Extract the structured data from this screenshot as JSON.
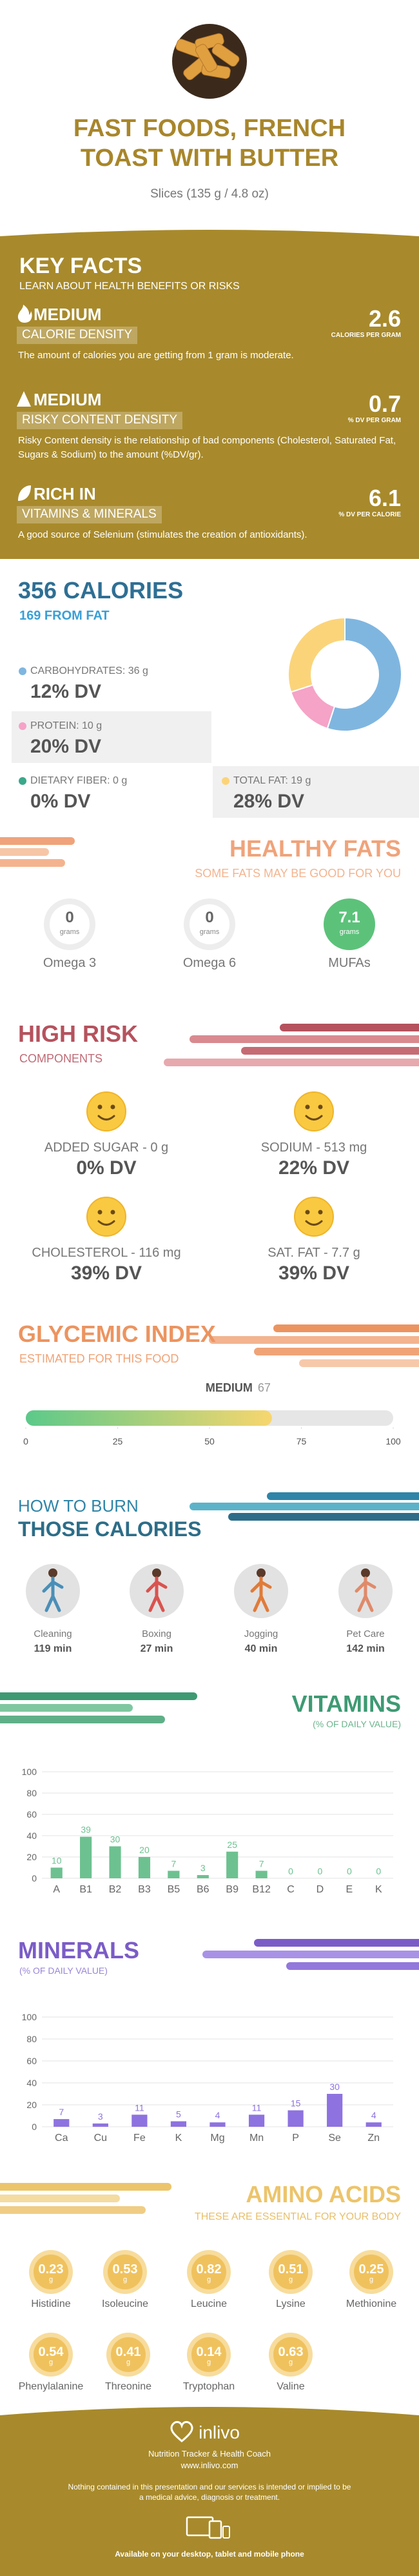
{
  "header": {
    "title": "FAST FOODS, FRENCH TOAST WITH BUTTER",
    "serving": "Slices (135 g / 4.8 oz)"
  },
  "key_facts": {
    "title": "KEY FACTS",
    "subtitle": "LEARN ABOUT HEALTH BENEFITS OR RISKS",
    "items": [
      {
        "level": "MEDIUM",
        "name": "CALORIE DENSITY",
        "value": 2.6,
        "unit": "CALORIES PER GRAM",
        "description": "The amount of calories you are getting from 1 gram is moderate."
      },
      {
        "level": "MEDIUM",
        "name": "RISKY CONTENT DENSITY",
        "value": 0.7,
        "unit": "% DV PER GRAM",
        "description": "Risky Content density is the relationship of bad components (Cholesterol, Saturated Fat, Sugars & Sodium) to the amount (%DV/gr)."
      },
      {
        "level": "RICH IN",
        "name": "VITAMINS & MINERALS",
        "value": 6.1,
        "unit": "% DV PER CALORIE",
        "description": "A good source of Selenium (stimulates the creation of antioxidants)."
      }
    ]
  },
  "calories": {
    "title": "356 CALORIES",
    "subtitle": "169 FROM FAT",
    "macros": [
      {
        "label": "CARBOHYDRATES: 36 g",
        "dv": "12% DV",
        "color": "#7fb6e0"
      },
      {
        "label": "PROTEIN: 10 g",
        "dv": "20% DV",
        "color": "#f5a3c7"
      },
      {
        "label": "DIETARY FIBER: 0 g",
        "dv": "0% DV",
        "color": "#3aa88a"
      },
      {
        "label": "TOTAL FAT: 19 g",
        "dv": "28% DV",
        "color": "#fbd47a"
      }
    ]
  },
  "healthy_fats": {
    "title": "HEALTHY FATS",
    "subtitle": "SOME FATS MAY BE GOOD FOR YOU",
    "items": [
      {
        "name": "Omega 3",
        "value": 0,
        "unit": "grams"
      },
      {
        "name": "Omega 6",
        "value": 0,
        "unit": "grams"
      },
      {
        "name": "MUFAs",
        "value": 7.1,
        "unit": "grams"
      }
    ]
  },
  "high_risk": {
    "title": "HIGH RISK",
    "subtitle": "COMPONENTS",
    "items": [
      {
        "label": "ADDED SUGAR - 0 g",
        "dv": "0% DV"
      },
      {
        "label": "SODIUM - 513 mg",
        "dv": "22% DV"
      },
      {
        "label": "CHOLESTEROL - 116 mg",
        "dv": "39% DV"
      },
      {
        "label": "SAT. FAT - 7.7 g",
        "dv": "39% DV"
      }
    ]
  },
  "glycemic": {
    "title": "GLYCEMIC INDEX",
    "subtitle": "ESTIMATED FOR THIS FOOD"
  },
  "burn": {
    "title": "HOW TO BURN",
    "subtitle": "THOSE CALORIES",
    "activities": [
      {
        "name": "Cleaning",
        "time": "119 min"
      },
      {
        "name": "Boxing",
        "time": "27 min"
      },
      {
        "name": "Jogging",
        "time": "40 min"
      },
      {
        "name": "Pet Care",
        "time": "142 min"
      }
    ]
  },
  "vitamins": {
    "title": "VITAMINS",
    "subtitle": "(% OF DAILY VALUE)"
  },
  "minerals": {
    "title": "MINERALS",
    "subtitle": "(% OF DAILY VALUE)"
  },
  "amino_acids": {
    "title": "AMINO ACIDS",
    "subtitle": "THESE ARE ESSENTIAL FOR YOUR BODY",
    "items": [
      {
        "name": "Histidine",
        "value": 0.23,
        "unit": "g"
      },
      {
        "name": "Isoleucine",
        "value": 0.53,
        "unit": "g"
      },
      {
        "name": "Leucine",
        "value": 0.82,
        "unit": "g"
      },
      {
        "name": "Lysine",
        "value": 0.51,
        "unit": "g"
      },
      {
        "name": "Methionine",
        "value": 0.25,
        "unit": "g"
      },
      {
        "name": "Phenylalanine",
        "value": 0.54,
        "unit": "g"
      },
      {
        "name": "Threonine",
        "value": 0.41,
        "unit": "g"
      },
      {
        "name": "Tryptophan",
        "value": 0.14,
        "unit": "g"
      },
      {
        "name": "Valine",
        "value": 0.63,
        "unit": "g"
      }
    ]
  },
  "footer": {
    "brand": "inlivo",
    "tagline": "Nutrition Tracker & Health Coach",
    "url": "www.inlivo.com",
    "disclaimer": "Nothing contained in this presentation and our services is intended or implied to be a medical advice, diagnosis or treatment.",
    "availability": "Available on your desktop, tablet and mobile phone"
  },
  "chart_data": [
    {
      "type": "pie",
      "values": [
        55,
        15,
        30
      ],
      "colors": [
        "#7fb6e0",
        "#f5a3c7",
        "#fbd47a"
      ]
    },
    {
      "type": "gauge",
      "level": "MEDIUM",
      "value": 67,
      "xlim": [
        0,
        100
      ],
      "xticks": [
        0,
        25,
        50,
        75,
        100
      ]
    },
    {
      "type": "bar",
      "categories": [
        "A",
        "B1",
        "B2",
        "B3",
        "B5",
        "B6",
        "B9",
        "B12",
        "C",
        "D",
        "E",
        "K"
      ],
      "values": [
        10,
        39,
        30,
        20,
        7,
        3,
        25,
        7,
        0,
        0,
        0,
        0
      ],
      "color": "#6dc190",
      "ylim": [
        0,
        100
      ],
      "yticks": [
        0,
        20,
        40,
        60,
        80,
        100
      ],
      "grid": true
    },
    {
      "type": "bar",
      "categories": [
        "Ca",
        "Cu",
        "Fe",
        "K",
        "Mg",
        "Mn",
        "P",
        "Se",
        "Zn"
      ],
      "values": [
        7,
        3,
        11,
        5,
        4,
        11,
        15,
        30,
        4
      ],
      "color": "#8e72e0",
      "ylim": [
        0,
        100
      ],
      "yticks": [
        0,
        20,
        40,
        60,
        80,
        100
      ],
      "grid": true
    }
  ]
}
